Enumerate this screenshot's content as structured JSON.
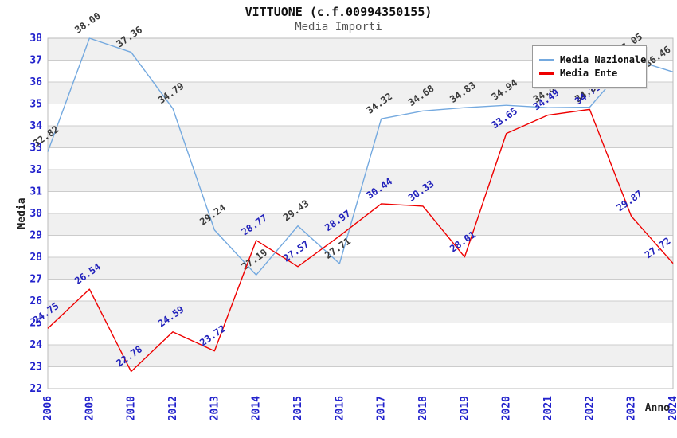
{
  "header": {
    "title": "VITTUONE (c.f.00994350155)",
    "subtitle": "Media Importi"
  },
  "chart_data": {
    "type": "line",
    "title": "VITTUONE (c.f.00994350155)",
    "subtitle": "Media Importi",
    "xlabel": "Anno",
    "ylabel": "Media",
    "ylim": [
      22,
      38
    ],
    "y_tick_step": 1,
    "grid": true,
    "legend_position": "top-right",
    "band_colors": [
      "#f0f0f0",
      "#ffffff"
    ],
    "gridline_color": "#cccccc",
    "axis_tick_color": "#2222cc",
    "categories": [
      "2006",
      "2009",
      "2010",
      "2012",
      "2013",
      "2014",
      "2015",
      "2016",
      "2017",
      "2018",
      "2019",
      "2020",
      "2021",
      "2022",
      "2023",
      "2024"
    ],
    "series": [
      {
        "name": "Media Nazionale",
        "color": "#74a9df",
        "label_color": "#3a3a3a",
        "values": [
          32.82,
          38.0,
          37.36,
          34.79,
          29.24,
          27.19,
          29.43,
          27.71,
          34.32,
          34.68,
          34.83,
          34.94,
          34.83,
          34.85,
          37.05,
          36.46
        ]
      },
      {
        "name": "Media Ente",
        "color": "#ee0000",
        "label_color": "#2222bb",
        "values": [
          24.75,
          26.54,
          22.78,
          24.59,
          23.72,
          28.77,
          27.57,
          28.97,
          30.44,
          30.33,
          28.01,
          33.65,
          34.49,
          34.75,
          29.87,
          27.72
        ]
      }
    ]
  }
}
